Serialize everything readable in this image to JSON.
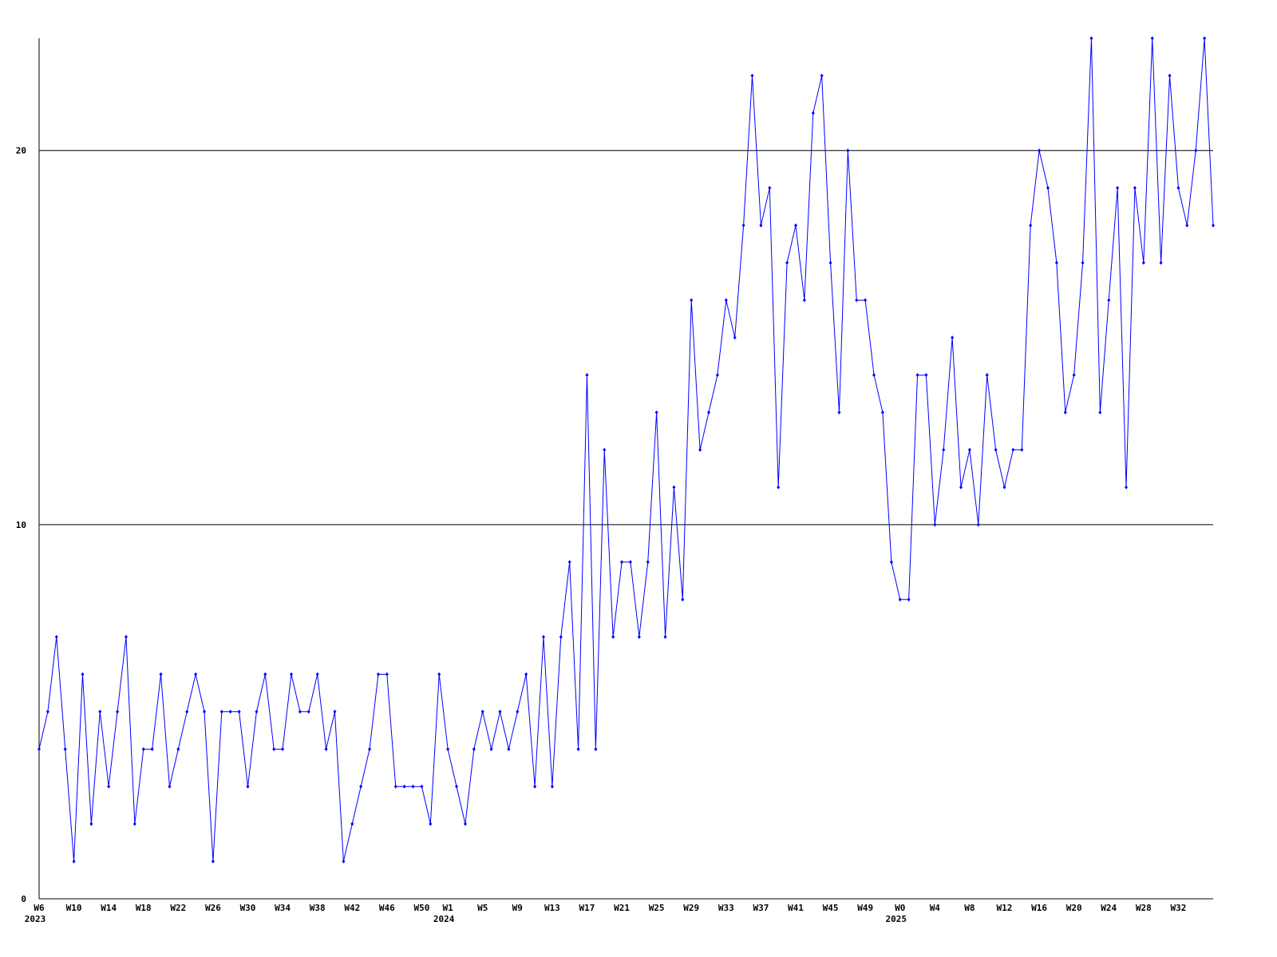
{
  "chart_data": {
    "type": "line",
    "categories": [
      "W6\n2023",
      null,
      null,
      null,
      "W10",
      null,
      null,
      null,
      "W14",
      null,
      null,
      null,
      "W18",
      null,
      null,
      null,
      "W22",
      null,
      null,
      null,
      "W26",
      null,
      null,
      null,
      "W30",
      null,
      null,
      null,
      "W34",
      null,
      null,
      null,
      "W38",
      null,
      null,
      null,
      "W42",
      null,
      null,
      null,
      "W46",
      null,
      null,
      null,
      "W50",
      null,
      null,
      "W1\n2024",
      null,
      null,
      null,
      "W5",
      null,
      null,
      null,
      "W9",
      null,
      null,
      null,
      "W13",
      null,
      null,
      null,
      "W17",
      null,
      null,
      null,
      "W21",
      null,
      null,
      null,
      "W25",
      null,
      null,
      null,
      "W29",
      null,
      null,
      null,
      "W33",
      null,
      null,
      null,
      "W37",
      null,
      null,
      null,
      "W41",
      null,
      null,
      null,
      "W45",
      null,
      null,
      null,
      "W49",
      null,
      null,
      null,
      "W0\n2025",
      null,
      null,
      null,
      "W4",
      null,
      null,
      null,
      "W8",
      null,
      null,
      null,
      "W12",
      null,
      null,
      null,
      "W16",
      null,
      null,
      null,
      "W20",
      null,
      null,
      null,
      "W24",
      null,
      null,
      null,
      "W28",
      null,
      null,
      null,
      "W32",
      null,
      null,
      null,
      null
    ],
    "series": [
      {
        "color": "#0000ff",
        "values": [
          4,
          5,
          7,
          4,
          1,
          6,
          2,
          5,
          3,
          5,
          7,
          2,
          4,
          4,
          6,
          3,
          4,
          5,
          6,
          5,
          1,
          5,
          5,
          5,
          3,
          5,
          6,
          4,
          4,
          6,
          5,
          5,
          6,
          4,
          5,
          1,
          2,
          3,
          4,
          6,
          6,
          3,
          3,
          3,
          3,
          2,
          6,
          4,
          3,
          2,
          4,
          5,
          4,
          5,
          4,
          5,
          6,
          3,
          7,
          3,
          7,
          9,
          4,
          14,
          4,
          12,
          7,
          9,
          9,
          7,
          9,
          13,
          7,
          11,
          8,
          16,
          12,
          13,
          14,
          16,
          15,
          18,
          22,
          18,
          19,
          11,
          17,
          18,
          16,
          21,
          22,
          17,
          13,
          20,
          16,
          16,
          14,
          13,
          9,
          8,
          8,
          14,
          14,
          10,
          12,
          15,
          11,
          12,
          10,
          14,
          12,
          11,
          12,
          12,
          18,
          20,
          19,
          17,
          13,
          14,
          17,
          23,
          13,
          16,
          19,
          11,
          19,
          17,
          23,
          17,
          22,
          19,
          18,
          20,
          23,
          18
        ]
      }
    ],
    "ylim": [
      0,
      23
    ],
    "yticks": [
      0,
      10,
      20
    ],
    "grid": true
  }
}
